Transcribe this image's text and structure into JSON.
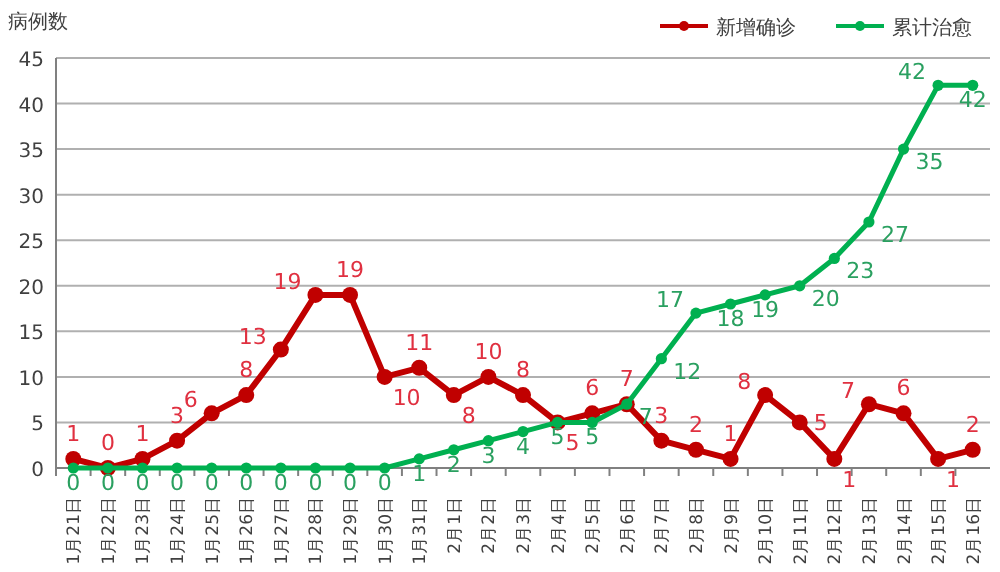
{
  "chart_data": {
    "type": "line",
    "ylabel": "病例数",
    "categories": [
      "1月21日",
      "1月22日",
      "1月23日",
      "1月24日",
      "1月25日",
      "1月26日",
      "1月27日",
      "1月28日",
      "1月29日",
      "1月30日",
      "1月31日",
      "2月1日",
      "2月2日",
      "2月3日",
      "2月4日",
      "2月5日",
      "2月6日",
      "2月7日",
      "2月8日",
      "2月9日",
      "2月10日",
      "2月11日",
      "2月12日",
      "2月13日",
      "2月14日",
      "2月15日",
      "2月16日"
    ],
    "series": [
      {
        "name": "新增确诊",
        "color": "#c00000",
        "values": [
          1,
          0,
          1,
          3,
          6,
          8,
          13,
          19,
          19,
          10,
          11,
          8,
          10,
          8,
          5,
          6,
          7,
          3,
          2,
          1,
          8,
          5,
          1,
          7,
          6,
          1,
          2
        ]
      },
      {
        "name": "累计治愈",
        "color": "#00b050",
        "values": [
          0,
          0,
          0,
          0,
          0,
          0,
          0,
          0,
          0,
          0,
          1,
          2,
          3,
          4,
          5,
          5,
          7,
          12,
          17,
          18,
          19,
          20,
          23,
          27,
          35,
          42,
          42
        ]
      }
    ],
    "ylim": [
      0,
      45
    ],
    "yticks": [
      0,
      5,
      10,
      15,
      20,
      25,
      30,
      35,
      40,
      45
    ],
    "grid": "y",
    "legend": "top right",
    "marker": "circle",
    "data_labels": true
  }
}
